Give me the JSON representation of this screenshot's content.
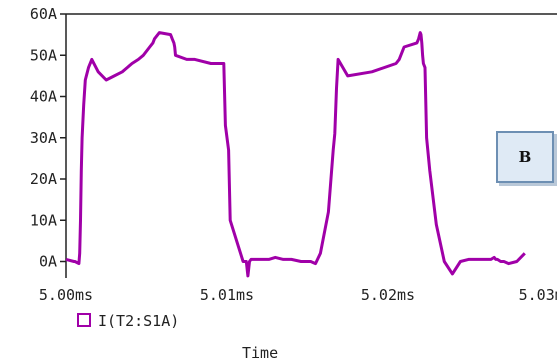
{
  "chart_data": {
    "type": "line",
    "xlabel": "Time",
    "ylabel": "",
    "xlim": [
      5.0,
      5.0305
    ],
    "ylim": [
      -4,
      60
    ],
    "x_ticks": [
      {
        "value": 5.0,
        "label": "5.00ms"
      },
      {
        "value": 5.01,
        "label": "5.01ms"
      },
      {
        "value": 5.02,
        "label": "5.02ms"
      },
      {
        "value": 5.0298,
        "label": "5.03ms"
      }
    ],
    "y_ticks": [
      {
        "value": 0,
        "label": "0A"
      },
      {
        "value": 10,
        "label": "10A"
      },
      {
        "value": 20,
        "label": "20A"
      },
      {
        "value": 30,
        "label": "30A"
      },
      {
        "value": 40,
        "label": "40A"
      },
      {
        "value": 50,
        "label": "50A"
      },
      {
        "value": 60,
        "label": "60A"
      }
    ],
    "series": [
      {
        "name": "I(T2:S1A)",
        "color": "#a000a8",
        "x": [
          5.0,
          5.0005,
          5.00055,
          5.0008,
          5.00085,
          5.0009,
          5.00095,
          5.001,
          5.0011,
          5.0012,
          5.0014,
          5.0016,
          5.002,
          5.0025,
          5.003,
          5.0035,
          5.0038,
          5.0041,
          5.0045,
          5.0048,
          5.0052,
          5.0054,
          5.0055,
          5.0058,
          5.0065,
          5.0066,
          5.0067,
          5.00675,
          5.0068,
          5.0075,
          5.008,
          5.009,
          5.0098,
          5.0099,
          5.0101,
          5.0102,
          5.011,
          5.0112,
          5.0113,
          5.0114,
          5.0115,
          5.0116,
          5.0117,
          5.0118,
          5.0119,
          5.012,
          5.0122,
          5.0126,
          5.013,
          5.0135,
          5.014,
          5.0146,
          5.0152,
          5.0155,
          5.0158,
          5.0163,
          5.0166,
          5.0167,
          5.0168,
          5.0169,
          5.0175,
          5.019,
          5.0205,
          5.0207,
          5.0209,
          5.021,
          5.0218,
          5.0219,
          5.022,
          5.02205,
          5.0221,
          5.02215,
          5.0222,
          5.0223,
          5.0224,
          5.0226,
          5.023,
          5.0235,
          5.024,
          5.0245,
          5.025,
          5.0254,
          5.0258,
          5.0262,
          5.0264,
          5.0266,
          5.0267,
          5.0268,
          5.027,
          5.0272,
          5.0275,
          5.028,
          5.0285
        ],
        "values": [
          0.5,
          0,
          0,
          -0.5,
          2,
          10,
          22,
          30,
          38,
          44,
          47,
          49,
          46,
          44,
          45,
          46,
          47,
          48,
          49,
          50,
          52,
          53,
          54,
          55.5,
          55,
          54,
          53,
          52,
          50,
          49,
          49,
          48,
          48,
          33,
          27,
          10,
          0,
          0,
          -3.5,
          0,
          0.5,
          0.5,
          0.5,
          0.5,
          0.5,
          0.5,
          0.5,
          0.5,
          1,
          0.5,
          0.5,
          0,
          0,
          -0.5,
          2,
          12,
          27,
          31,
          42,
          49,
          45,
          46,
          48,
          49,
          51,
          52,
          53,
          54,
          55.5,
          55,
          53,
          50,
          48,
          47,
          30,
          22,
          9,
          0,
          -3,
          0,
          0.5,
          0.5,
          0.5,
          0.5,
          0.5,
          1,
          0.5,
          0.5,
          0,
          0,
          -0.5,
          0,
          2
        ]
      }
    ],
    "legend": {
      "position": "bottom-left",
      "marker": "square"
    },
    "annotation": {
      "text": "B"
    }
  }
}
